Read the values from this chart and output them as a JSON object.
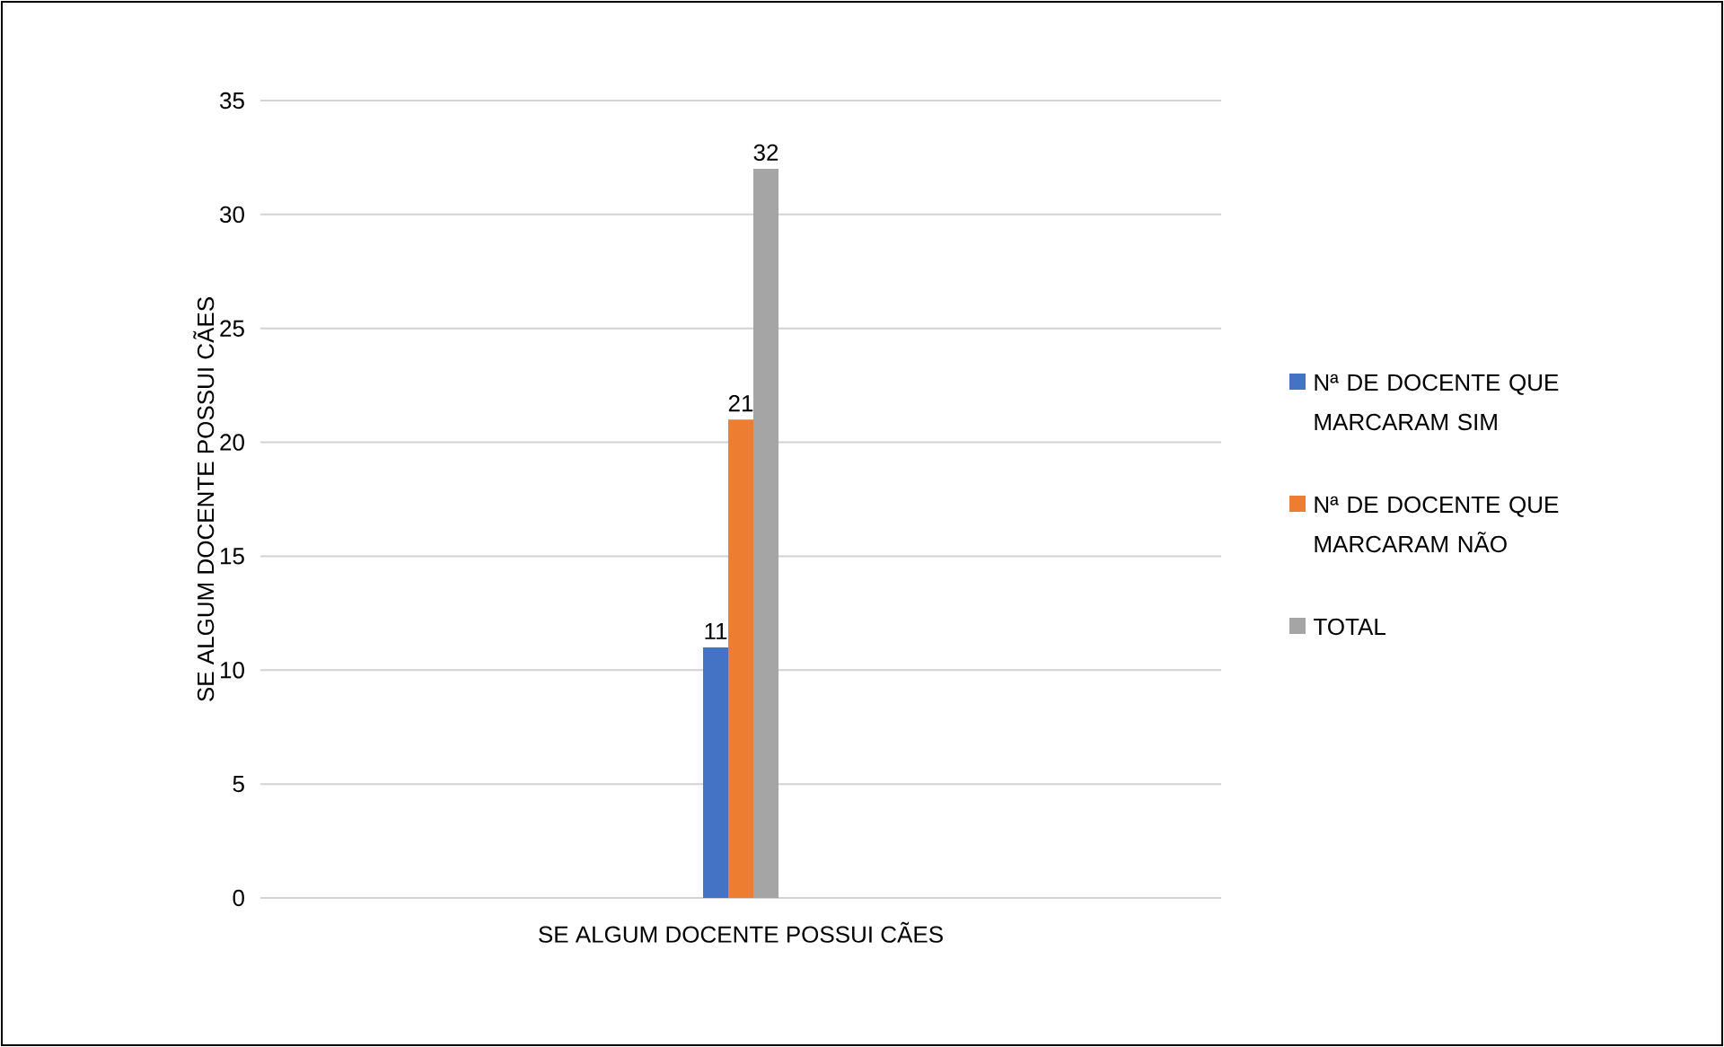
{
  "chart_data": {
    "type": "bar",
    "xlabel": "SE ALGUM DOCENTE POSSUI CÃES",
    "ylabel": "SE ALGUM DOCENTE POSSUI CÃES",
    "categories": [
      null
    ],
    "series": [
      {
        "name": "Nª DE DOCENTE QUE MARCARAM SIM",
        "color": "#4472c4",
        "values": [
          11
        ]
      },
      {
        "name": "Nª DE DOCENTE QUE MARCARAM NÃO",
        "color": "#ed7d31",
        "values": [
          21
        ]
      },
      {
        "name": "TOTAL",
        "color": "#a5a5a5",
        "values": [
          32
        ]
      }
    ],
    "ylim": [
      0,
      35
    ],
    "yticks": [
      0,
      5,
      10,
      15,
      20,
      25,
      30,
      35
    ],
    "grid": "y",
    "legend": "right",
    "data_labels": true
  }
}
